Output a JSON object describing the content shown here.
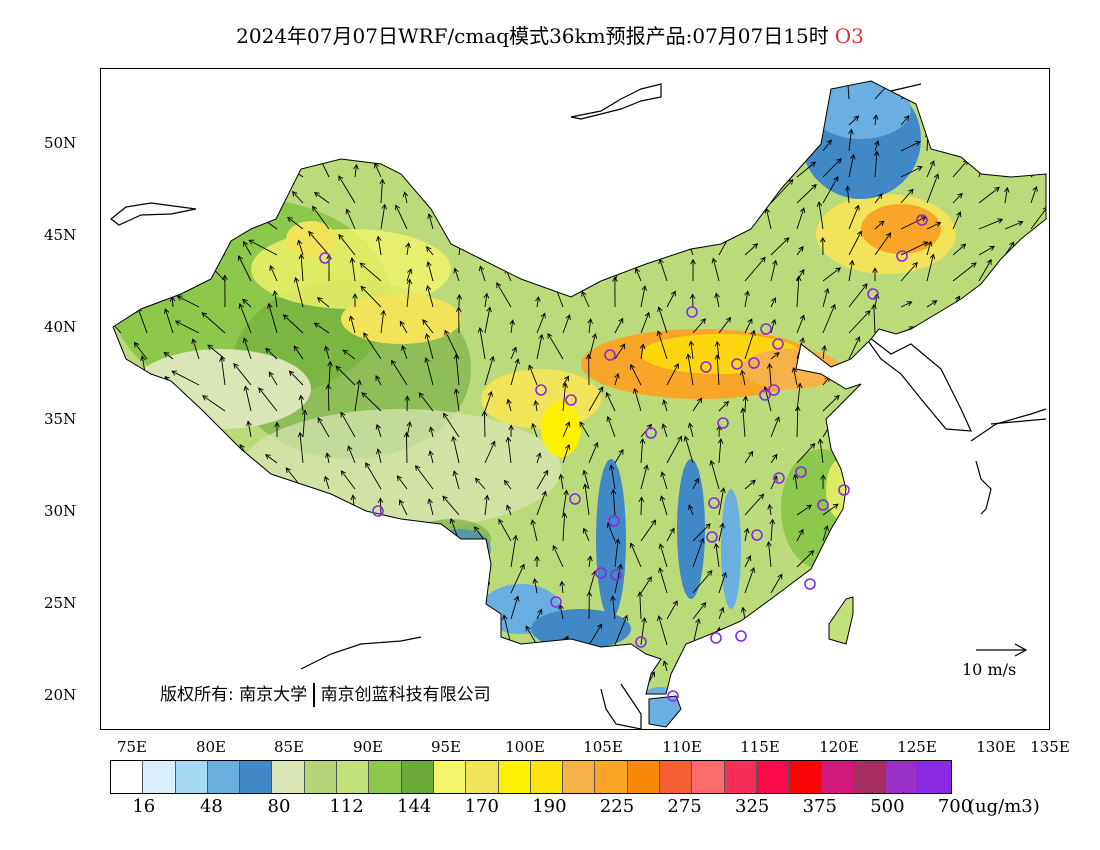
{
  "title": {
    "text": "2024年07月07日WRF/cmaq模式36km预报产品:07月07日15时",
    "species": "O3",
    "species_color": "#e0312f"
  },
  "lat_labels": [
    "50N",
    "45N",
    "40N",
    "35N",
    "30N",
    "25N",
    "20N"
  ],
  "lon_labels": [
    "75E",
    "80E",
    "85E",
    "90E",
    "95E",
    "100E",
    "105E",
    "110E",
    "115E",
    "120E",
    "125E",
    "130E",
    "135E"
  ],
  "copyright": {
    "part1": "版权所有: 南京大学",
    "part2": "南京创蓝科技有限公司"
  },
  "wind_reference": "10 m/s",
  "legend": {
    "colors": [
      "#ffffff",
      "#d7effa",
      "#a6daf4",
      "#69afdf",
      "#4189c6",
      "#dbe6b6",
      "#b6d57a",
      "#c3e17a",
      "#8cc84b",
      "#6aa83c",
      "#f2f569",
      "#f2e35a",
      "#fdf203",
      "#fce40a",
      "#f6b248",
      "#f9a528",
      "#f98a08",
      "#f46034",
      "#fc6c6c",
      "#f72e55",
      "#f80a4b",
      "#fc0506",
      "#d11a7c",
      "#a72e60",
      "#9a2fc6",
      "#8a2be2"
    ],
    "labels": [
      "16",
      "48",
      "80",
      "112",
      "144",
      "170",
      "190",
      "225",
      "275",
      "325",
      "375",
      "500",
      "700"
    ],
    "unit": "(ug/m3)"
  },
  "stations": [
    "station-1",
    "station-2",
    "station-3",
    "station-4",
    "station-5",
    "station-6",
    "station-7",
    "station-8",
    "station-9",
    "station-10",
    "station-11",
    "station-12",
    "station-13",
    "station-14",
    "station-15",
    "station-16",
    "station-17",
    "station-18",
    "station-19",
    "station-20",
    "station-21",
    "station-22",
    "station-23",
    "station-24",
    "station-25",
    "station-26",
    "station-27",
    "station-28",
    "station-29",
    "station-30",
    "station-31",
    "station-32",
    "station-33",
    "station-34",
    "station-35"
  ]
}
